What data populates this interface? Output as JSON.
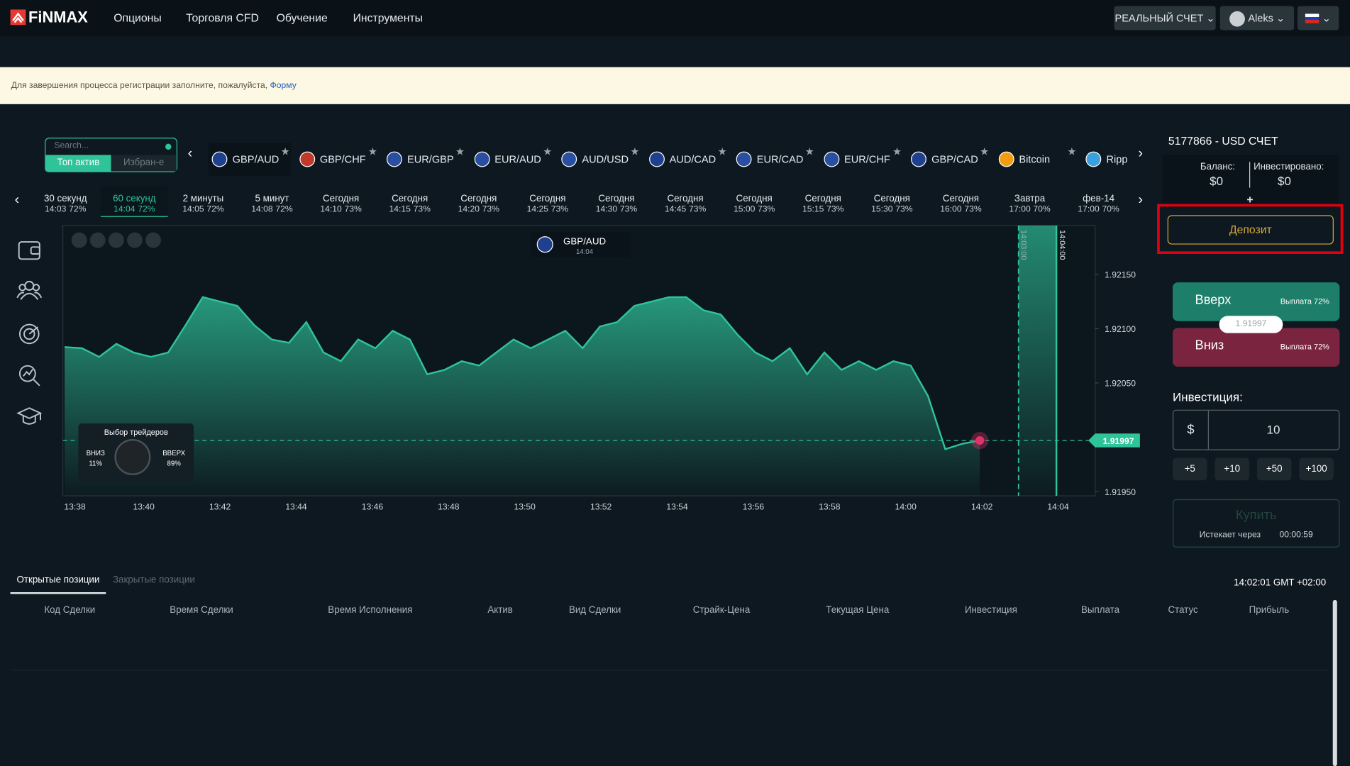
{
  "nav": {
    "logo": "FiNMAX",
    "menu": [
      "Опционы",
      "Торговля CFD",
      "Обучение",
      "Инструменты"
    ],
    "account_type": "РЕАЛЬНЫЙ СЧЕТ",
    "user": "Aleks"
  },
  "banner": {
    "text": "Для завершения процесса регистрации заполните, пожалуйста,",
    "link": "Форму"
  },
  "asset_search": {
    "placeholder": "Search...",
    "tabs": [
      "Топ актив",
      "Избран-е"
    ]
  },
  "assets": [
    "GBP/AUD",
    "GBP/CHF",
    "EUR/GBP",
    "EUR/AUD",
    "AUD/USD",
    "AUD/CAD",
    "EUR/CAD",
    "EUR/CHF",
    "GBP/CAD",
    "Bitcoin",
    "Ripp"
  ],
  "expiries": [
    {
      "name": "30 секунд",
      "time": "14:03",
      "payout": "72%"
    },
    {
      "name": "60 секунд",
      "time": "14:04",
      "payout": "72%"
    },
    {
      "name": "2 минуты",
      "time": "14:05",
      "payout": "72%"
    },
    {
      "name": "5 минут",
      "time": "14:08",
      "payout": "72%"
    },
    {
      "name": "Сегодня",
      "time": "14:10",
      "payout": "73%"
    },
    {
      "name": "Сегодня",
      "time": "14:15",
      "payout": "73%"
    },
    {
      "name": "Сегодня",
      "time": "14:20",
      "payout": "73%"
    },
    {
      "name": "Сегодня",
      "time": "14:25",
      "payout": "73%"
    },
    {
      "name": "Сегодня",
      "time": "14:30",
      "payout": "73%"
    },
    {
      "name": "Сегодня",
      "time": "14:45",
      "payout": "73%"
    },
    {
      "name": "Сегодня",
      "time": "15:00",
      "payout": "73%"
    },
    {
      "name": "Сегодня",
      "time": "15:15",
      "payout": "73%"
    },
    {
      "name": "Сегодня",
      "time": "15:30",
      "payout": "73%"
    },
    {
      "name": "Сегодня",
      "time": "16:00",
      "payout": "73%"
    },
    {
      "name": "Завтра",
      "time": "17:00",
      "payout": "70%"
    },
    {
      "name": "фев-14",
      "time": "17:00",
      "payout": "70%"
    }
  ],
  "chart_data": {
    "type": "area",
    "asset": "GBP/AUD",
    "asset_time": "14:04",
    "color": "#2fc39a",
    "x_labels": [
      "13:38",
      "13:40",
      "13:42",
      "13:44",
      "13:46",
      "13:48",
      "13:50",
      "13:52",
      "13:54",
      "13:56",
      "13:58",
      "14:00",
      "14:02",
      "14:04"
    ],
    "values": [
      1.92083,
      1.92082,
      1.92074,
      1.92086,
      1.92078,
      1.92074,
      1.92078,
      1.92103,
      1.92129,
      1.92125,
      1.92121,
      1.92103,
      1.9209,
      1.92087,
      1.92106,
      1.92078,
      1.9207,
      1.9209,
      1.92082,
      1.92098,
      1.9209,
      1.92058,
      1.92062,
      1.9207,
      1.92066,
      1.92078,
      1.9209,
      1.92082,
      1.9209,
      1.92098,
      1.92082,
      1.92102,
      1.92106,
      1.92121,
      1.92125,
      1.92129,
      1.92129,
      1.92117,
      1.92113,
      1.92094,
      1.92078,
      1.9207,
      1.92082,
      1.92058,
      1.92078,
      1.92062,
      1.9207,
      1.92062,
      1.9207,
      1.92066,
      1.92038,
      1.91989,
      1.91994,
      1.91997
    ],
    "ylim": [
      1.91946,
      1.92195
    ],
    "yticks": [
      {
        "value": 1.9215,
        "label": "1.92150"
      },
      {
        "value": 1.921,
        "label": "1.92100"
      },
      {
        "value": 1.9205,
        "label": "1.92050"
      },
      {
        "value": 1.9195,
        "label": "1.91950"
      }
    ],
    "grid": false,
    "expiry_lines": [
      "14:03:00",
      "14:04:00"
    ],
    "traders_choice": {
      "title": "Выбор трейдеров",
      "down": "ВНИЗ",
      "down_pct": "11%",
      "up": "ВВЕРХ",
      "up_pct": "89%"
    }
  },
  "trade_panel": {
    "account": "5177866 - USD СЧЕТ",
    "balance_label": "Баланс:",
    "balance": "$0",
    "invested_label": "Инвестировано:",
    "invested": "$0",
    "plus": "+",
    "deposit": "Депозит",
    "up": "Вверх",
    "up_payout": "Выплата 72%",
    "down": "Вниз",
    "down_payout": "Выплата 72%",
    "investment_label": "Инвестиция:",
    "currency": "$",
    "amount": "10",
    "quick": [
      "+5",
      "+10",
      "+50",
      "+100"
    ],
    "buy": "Купить",
    "expires_label": "Истекает через",
    "expires": "00:00:59"
  },
  "positions": {
    "tabs": [
      "Открытые позиции",
      "Закрытые позиции"
    ],
    "clock": "14:02:01 GMT +02:00",
    "columns": [
      "Код Сделки",
      "Время Сделки",
      "Время Исполнения",
      "Актив",
      "Вид Сделки",
      "Страйк-Цена",
      "Текущая Цена",
      "Инвестиция",
      "Выплата",
      "Статус",
      "Прибыль"
    ]
  }
}
